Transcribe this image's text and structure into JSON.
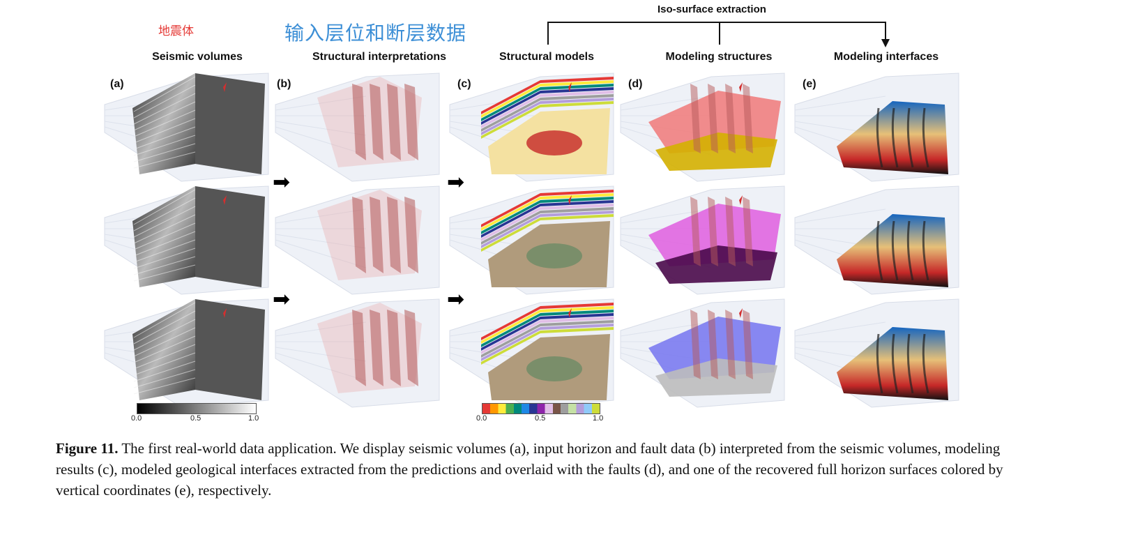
{
  "annotations": {
    "red_label": "地震体",
    "blue_label": "输入层位和断层数据"
  },
  "iso_surface_title": "Iso-surface extraction",
  "columns": [
    {
      "letter": "(a)",
      "title": "Seismic volumes"
    },
    {
      "letter": "(b)",
      "title": "Structural interpretations"
    },
    {
      "letter": "(c)",
      "title": "Structural models"
    },
    {
      "letter": "(d)",
      "title": "Modeling structures"
    },
    {
      "letter": "(e)",
      "title": "Modeling interfaces"
    }
  ],
  "arrow_glyph": "➡",
  "colorbar_gray": {
    "ticks": [
      "0.0",
      "0.5",
      "1.0"
    ],
    "colors": [
      "#000000",
      "#ffffff"
    ]
  },
  "colorbar_color": {
    "ticks": [
      "0.0",
      "0.5",
      "1.0"
    ],
    "colors": [
      "#e53935",
      "#ff9800",
      "#ffeb3b",
      "#4caf50",
      "#00897b",
      "#1e88e5",
      "#283593",
      "#8e24aa",
      "#e1bee7",
      "#795548",
      "#9e9e9e",
      "#c5e1a5",
      "#b39ddb",
      "#90caf9",
      "#cddc39"
    ]
  },
  "surface_colors": [
    "#f08080",
    "#e066e0",
    "#7b7bef"
  ],
  "caption": {
    "figure_label": "Figure 11.",
    "body": "The first real-world data application. We display seismic volumes (a), input horizon and fault data (b) interpreted from the seismic volumes, modeling results (c), modeled geological interfaces extracted from the predictions and overlaid with the faults (d), and one of the recovered full horizon surfaces colored by vertical coordinates (e), respectively."
  }
}
